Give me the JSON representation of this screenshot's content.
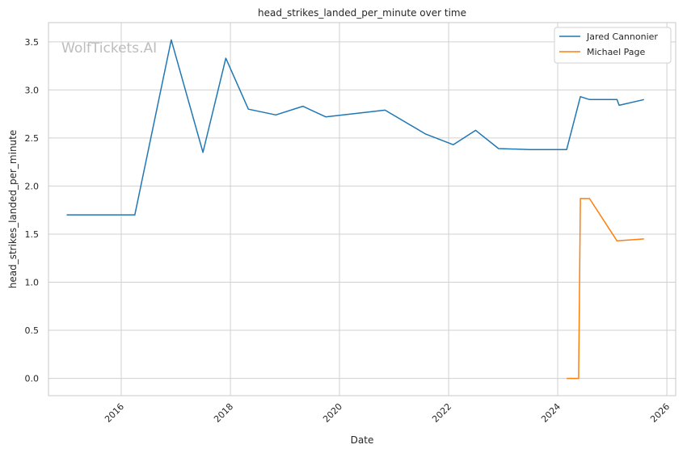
{
  "chart_data": {
    "type": "line",
    "title": "head_strikes_landed_per_minute over time",
    "xlabel": "Date",
    "ylabel": "head_strikes_landed_per_minute",
    "watermark": "WolfTickets.AI",
    "x_ticks": [
      "2016",
      "2018",
      "2020",
      "2022",
      "2024",
      "2026"
    ],
    "y_ticks": [
      "0.0",
      "0.5",
      "1.0",
      "1.5",
      "2.0",
      "2.5",
      "3.0",
      "3.5"
    ],
    "xlim": [
      "2014-09-01",
      "2026-03-01"
    ],
    "ylim": [
      -0.18,
      3.7
    ],
    "grid": true,
    "legend_position": "top-right",
    "colors": {
      "series_1": "#1f77b4",
      "series_2": "#ff7f0e",
      "grid": "#d0d0d0",
      "frame": "#c8c8c8"
    },
    "series": [
      {
        "name": "Jared Cannonier",
        "color": "#1f77b4",
        "points": [
          [
            "2015-01-01",
            1.7
          ],
          [
            "2016-04-01",
            1.7
          ],
          [
            "2016-12-01",
            3.52
          ],
          [
            "2017-07-01",
            2.35
          ],
          [
            "2017-12-01",
            3.33
          ],
          [
            "2018-05-01",
            2.8
          ],
          [
            "2018-11-01",
            2.74
          ],
          [
            "2019-05-01",
            2.83
          ],
          [
            "2019-10-01",
            2.72
          ],
          [
            "2020-11-01",
            2.79
          ],
          [
            "2021-08-01",
            2.54
          ],
          [
            "2022-02-01",
            2.43
          ],
          [
            "2022-07-01",
            2.58
          ],
          [
            "2022-12-01",
            2.39
          ],
          [
            "2023-07-01",
            2.38
          ],
          [
            "2024-03-01",
            2.38
          ],
          [
            "2024-06-01",
            2.93
          ],
          [
            "2024-08-01",
            2.9
          ],
          [
            "2025-02-01",
            2.9
          ],
          [
            "2025-02-15",
            2.84
          ],
          [
            "2025-08-01",
            2.9
          ]
        ]
      },
      {
        "name": "Michael Page",
        "color": "#ff7f0e",
        "points": [
          [
            "2024-03-01",
            0.0
          ],
          [
            "2024-05-20",
            0.0
          ],
          [
            "2024-06-01",
            1.87
          ],
          [
            "2024-08-01",
            1.87
          ],
          [
            "2025-02-01",
            1.43
          ],
          [
            "2025-08-01",
            1.45
          ]
        ]
      }
    ]
  }
}
